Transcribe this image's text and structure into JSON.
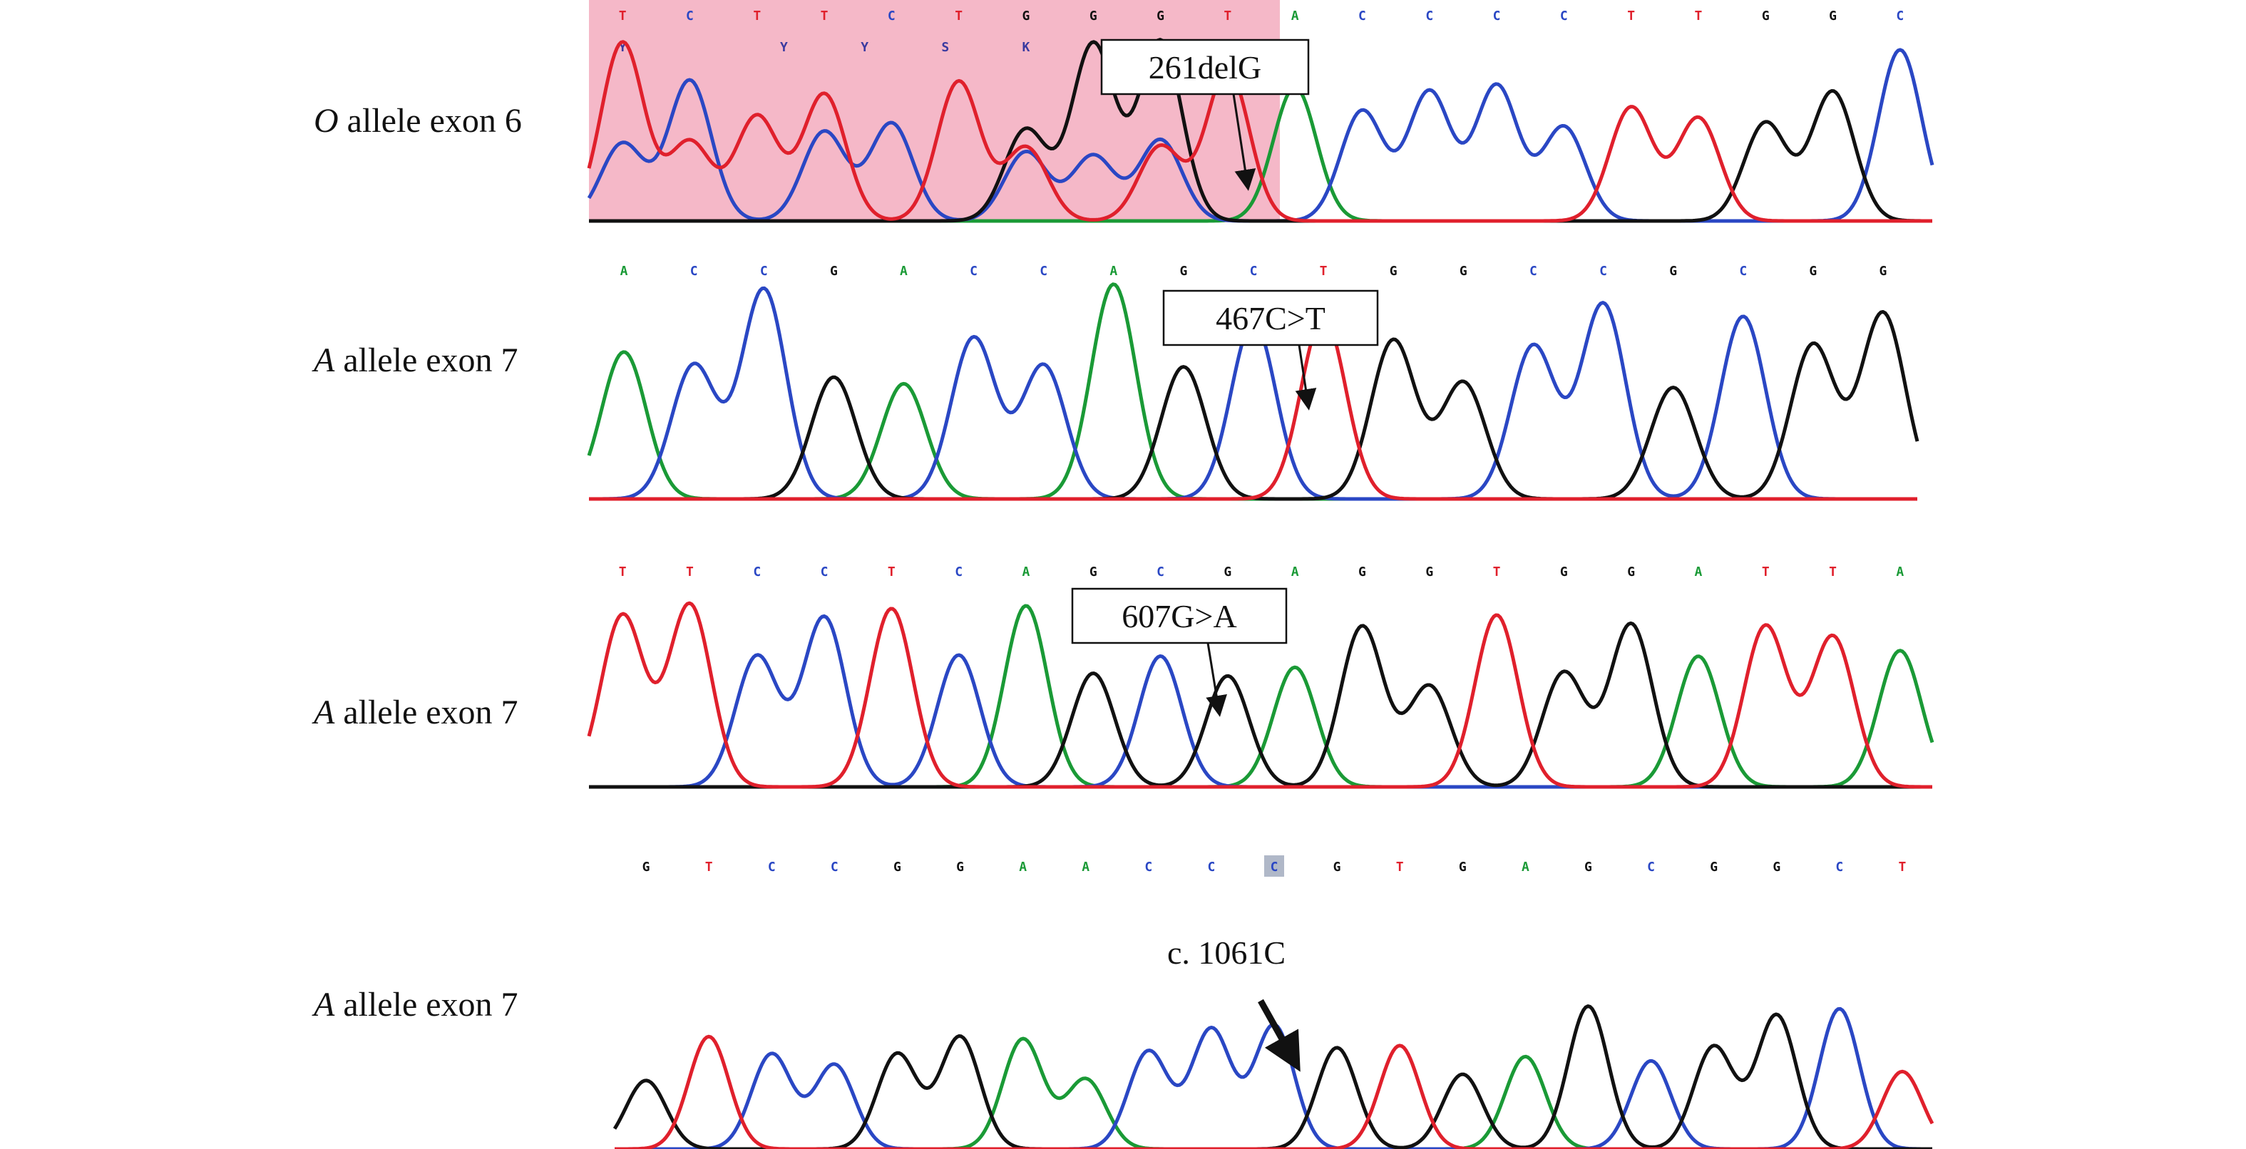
{
  "colors": {
    "A": "#1a9a36",
    "C": "#2a47c4",
    "G": "#111111",
    "T": "#e0202c",
    "highlight": "#f5b8c8",
    "marker": "#b0b8c8"
  },
  "panels": [
    {
      "label_italic": "O",
      "label_rest": " allele exon 6",
      "bases": [
        "T",
        "C",
        "T",
        "T",
        "C",
        "T",
        "G",
        "G",
        "G",
        "T",
        "A",
        "C",
        "C",
        "C",
        "C",
        "T",
        "T",
        "G",
        "G",
        "C"
      ],
      "ambiguity": [
        "Y",
        "Y",
        "Y",
        "S",
        "K",
        "K"
      ],
      "callout": "261delG"
    },
    {
      "label_italic": "A",
      "label_rest": " allele exon 7",
      "bases": [
        "A",
        "C",
        "C",
        "G",
        "A",
        "C",
        "C",
        "A",
        "G",
        "C",
        "T",
        "G",
        "G",
        "C",
        "C",
        "G",
        "C",
        "G",
        "G"
      ],
      "callout": "467C>T"
    },
    {
      "label_italic": "A",
      "label_rest": " allele exon 7",
      "bases": [
        "T",
        "T",
        "C",
        "C",
        "T",
        "C",
        "A",
        "G",
        "C",
        "G",
        "A",
        "G",
        "G",
        "T",
        "G",
        "G",
        "A",
        "T",
        "T",
        "A"
      ],
      "callout": "607G>A"
    },
    {
      "label_italic": "A",
      "label_rest": " allele exon 7",
      "bases": [
        "G",
        "T",
        "C",
        "C",
        "G",
        "G",
        "A",
        "A",
        "C",
        "C",
        "C",
        "G",
        "T",
        "G",
        "A",
        "G",
        "C",
        "G",
        "G",
        "C",
        "T"
      ],
      "callout": "c. 1061C"
    }
  ]
}
